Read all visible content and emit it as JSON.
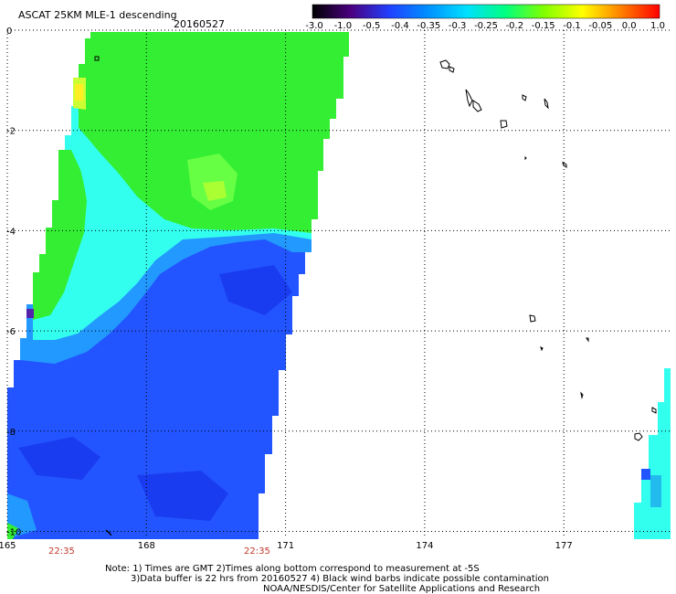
{
  "header": {
    "title": "ASCAT 25KM MLE-1 descending",
    "date": "20160527"
  },
  "colorbar": {
    "ticks": [
      "-3.0",
      "-1.0",
      "-0.5",
      "-0.4",
      "-0.35",
      "-0.3",
      "-0.25",
      "-0.2",
      "-0.15",
      "-0.1",
      "-0.05",
      "0.0",
      "1.0"
    ],
    "colors": [
      "#000000",
      "#4b0080",
      "#2040ff",
      "#0090ff",
      "#00e0ff",
      "#00ff80",
      "#80ff00",
      "#ffff00",
      "#ff8000",
      "#ff0000"
    ]
  },
  "axes": {
    "y_ticks": [
      "0",
      "-2",
      "-4",
      "-6",
      "-8",
      "-10"
    ],
    "x_ticks": [
      "165",
      "168",
      "171",
      "174",
      "177"
    ],
    "time_labels": [
      "22:35",
      "22:35"
    ]
  },
  "notes": {
    "line1": "Note: 1) Times are GMT 2)Times along bottom correspond to measurement at -5S",
    "line2": "3)Data buffer is 22 hrs from 20160527 4) Black wind barbs indicate possible contamination",
    "line3": "NOAA/NESDIS/Center for Satellite Applications and Research"
  },
  "map": {
    "lon_range": [
      165,
      179.3
    ],
    "lat_range": [
      -10.1,
      0
    ],
    "swath_colors": {
      "green": "#33ee33",
      "lime": "#66ff44",
      "yellowgreen": "#aaff33",
      "cyan": "#33ffee",
      "teal": "#22ccdd",
      "lightblue": "#2299ff",
      "blue": "#2255ff",
      "darkblue": "#1a3cf0"
    }
  }
}
